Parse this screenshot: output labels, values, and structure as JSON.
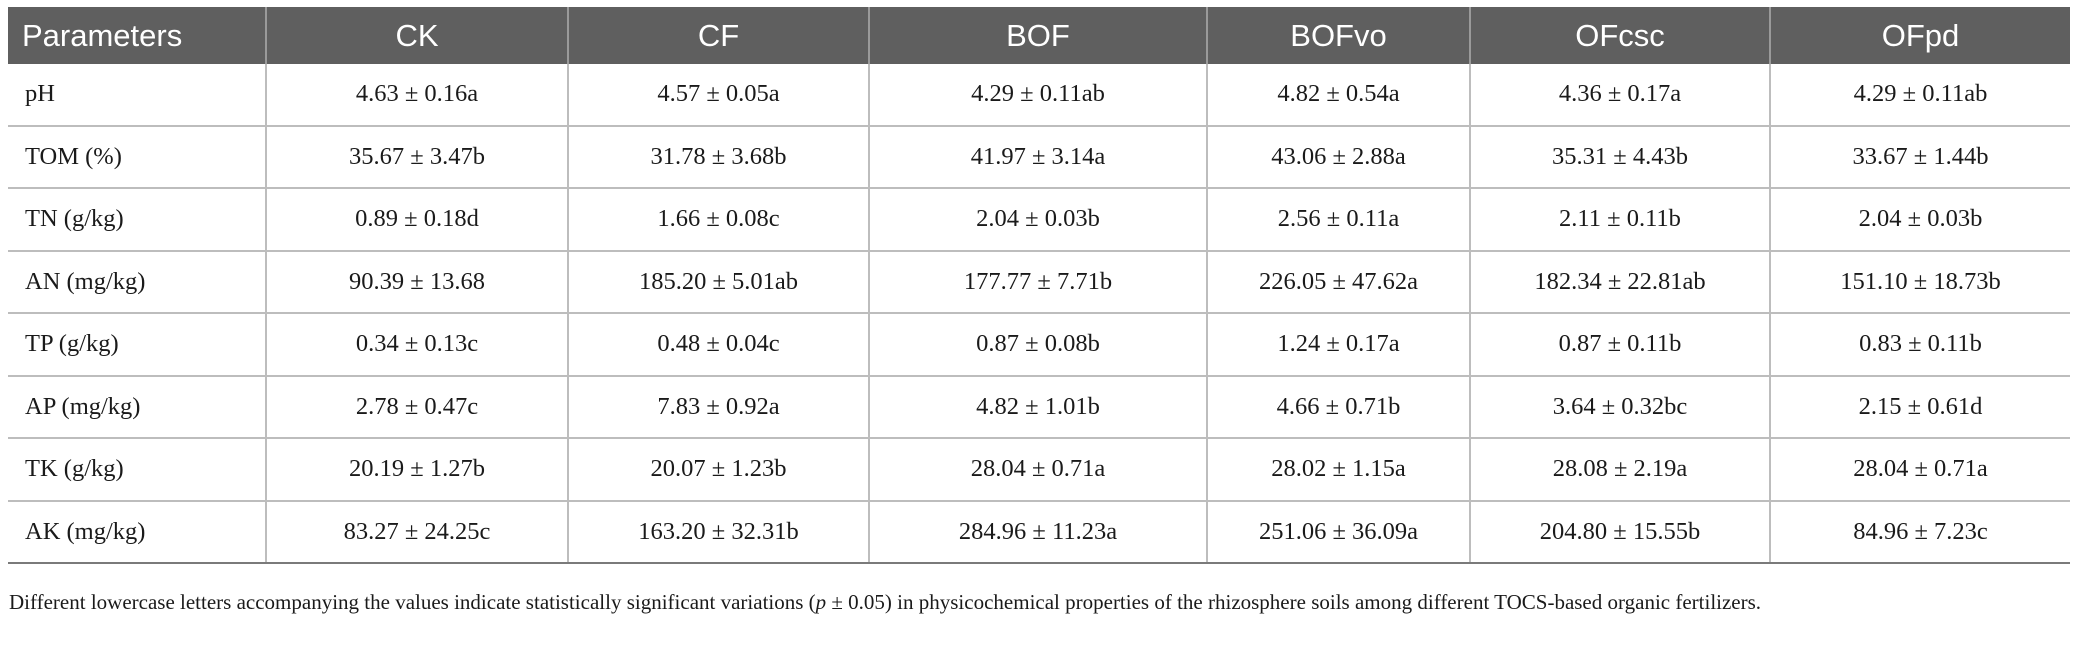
{
  "table": {
    "headers": [
      "Parameters",
      "CK",
      "CF",
      "BOF",
      "BOFvo",
      "OFcsc",
      "OFpd"
    ],
    "rows": [
      [
        "pH",
        "4.63 ± 0.16a",
        "4.57 ± 0.05a",
        "4.29 ± 0.11ab",
        "4.82 ± 0.54a",
        "4.36 ± 0.17a",
        "4.29 ± 0.11ab"
      ],
      [
        "TOM (%)",
        "35.67 ± 3.47b",
        "31.78 ± 3.68b",
        "41.97 ± 3.14a",
        "43.06 ± 2.88a",
        "35.31 ± 4.43b",
        "33.67 ± 1.44b"
      ],
      [
        "TN (g/kg)",
        "0.89 ± 0.18d",
        "1.66 ± 0.08c",
        "2.04 ± 0.03b",
        "2.56 ± 0.11a",
        "2.11 ± 0.11b",
        "2.04 ± 0.03b"
      ],
      [
        "AN (mg/kg)",
        "90.39 ± 13.68",
        "185.20 ± 5.01ab",
        "177.77 ± 7.71b",
        "226.05 ± 47.62a",
        "182.34 ± 22.81ab",
        "151.10 ± 18.73b"
      ],
      [
        "TP (g/kg)",
        "0.34 ± 0.13c",
        "0.48 ± 0.04c",
        "0.87 ± 0.08b",
        "1.24 ± 0.17a",
        "0.87 ± 0.11b",
        "0.83 ± 0.11b"
      ],
      [
        "AP (mg/kg)",
        "2.78 ± 0.47c",
        "7.83 ± 0.92a",
        "4.82 ± 1.01b",
        "4.66 ± 0.71b",
        "3.64 ± 0.32bc",
        "2.15 ± 0.61d"
      ],
      [
        "TK (g/kg)",
        "20.19 ± 1.27b",
        "20.07 ± 1.23b",
        "28.04 ± 0.71a",
        "28.02 ± 1.15a",
        "28.08 ± 2.19a",
        "28.04 ± 0.71a"
      ],
      [
        "AK (mg/kg)",
        "83.27 ± 24.25c",
        "163.20 ± 32.31b",
        "284.96 ± 11.23a",
        "251.06 ± 36.09a",
        "204.80 ± 15.55b",
        "84.96 ± 7.23c"
      ]
    ]
  },
  "footnote": {
    "before": "Different lowercase letters accompanying the values indicate statistically significant variations (",
    "italic": "p",
    "after": " ± 0.05) in physicochemical properties of the rhizosphere soils among different TOCS-based organic fertilizers."
  },
  "colors": {
    "header_bg": "#5f5f5f",
    "header_text": "#ffffff",
    "grid": "#bdbdbd"
  }
}
